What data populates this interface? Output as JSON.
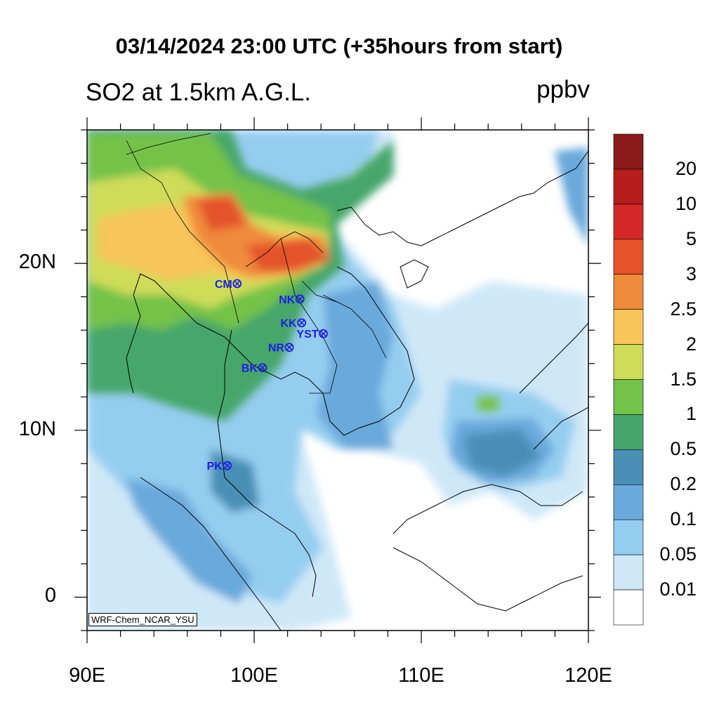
{
  "title": "03/14/2024 23:00 UTC (+35hours from start)",
  "subtitle": "SO2 at 1.5km A.G.L.",
  "units": "ppbv",
  "credit": "WRF-Chem_NCAR_YSU",
  "axes": {
    "x_ticks": [
      "90E",
      "100E",
      "110E",
      "120E"
    ],
    "y_ticks": [
      "20N",
      "10N",
      "0"
    ],
    "lon_range": [
      90,
      120
    ],
    "lat_range": [
      -2,
      28
    ]
  },
  "colorbar": {
    "levels": [
      "20",
      "10",
      "5",
      "3",
      "2.5",
      "2",
      "1.5",
      "1",
      "0.5",
      "0.2",
      "0.1",
      "0.05",
      "0.01"
    ],
    "colors": [
      "#8b1a1a",
      "#b71c1c",
      "#d62728",
      "#e4532a",
      "#f08a3c",
      "#f7c55a",
      "#cfdc5a",
      "#74c24a",
      "#46a66a",
      "#4a8fb5",
      "#6aa9dc",
      "#95cdf0",
      "#cfe8f8",
      "#ffffff"
    ]
  },
  "stations": [
    {
      "label": "CM",
      "lon": 98.98,
      "lat": 18.79
    },
    {
      "label": "NK",
      "lon": 102.74,
      "lat": 17.87
    },
    {
      "label": "KK",
      "lon": 102.84,
      "lat": 16.44
    },
    {
      "label": "YST",
      "lon": 104.14,
      "lat": 15.79
    },
    {
      "label": "NR",
      "lon": 102.1,
      "lat": 14.97
    },
    {
      "label": "BK",
      "lon": 100.5,
      "lat": 13.75
    },
    {
      "label": "PK",
      "lon": 98.39,
      "lat": 7.88
    }
  ],
  "station_color": "#1e1ee6"
}
